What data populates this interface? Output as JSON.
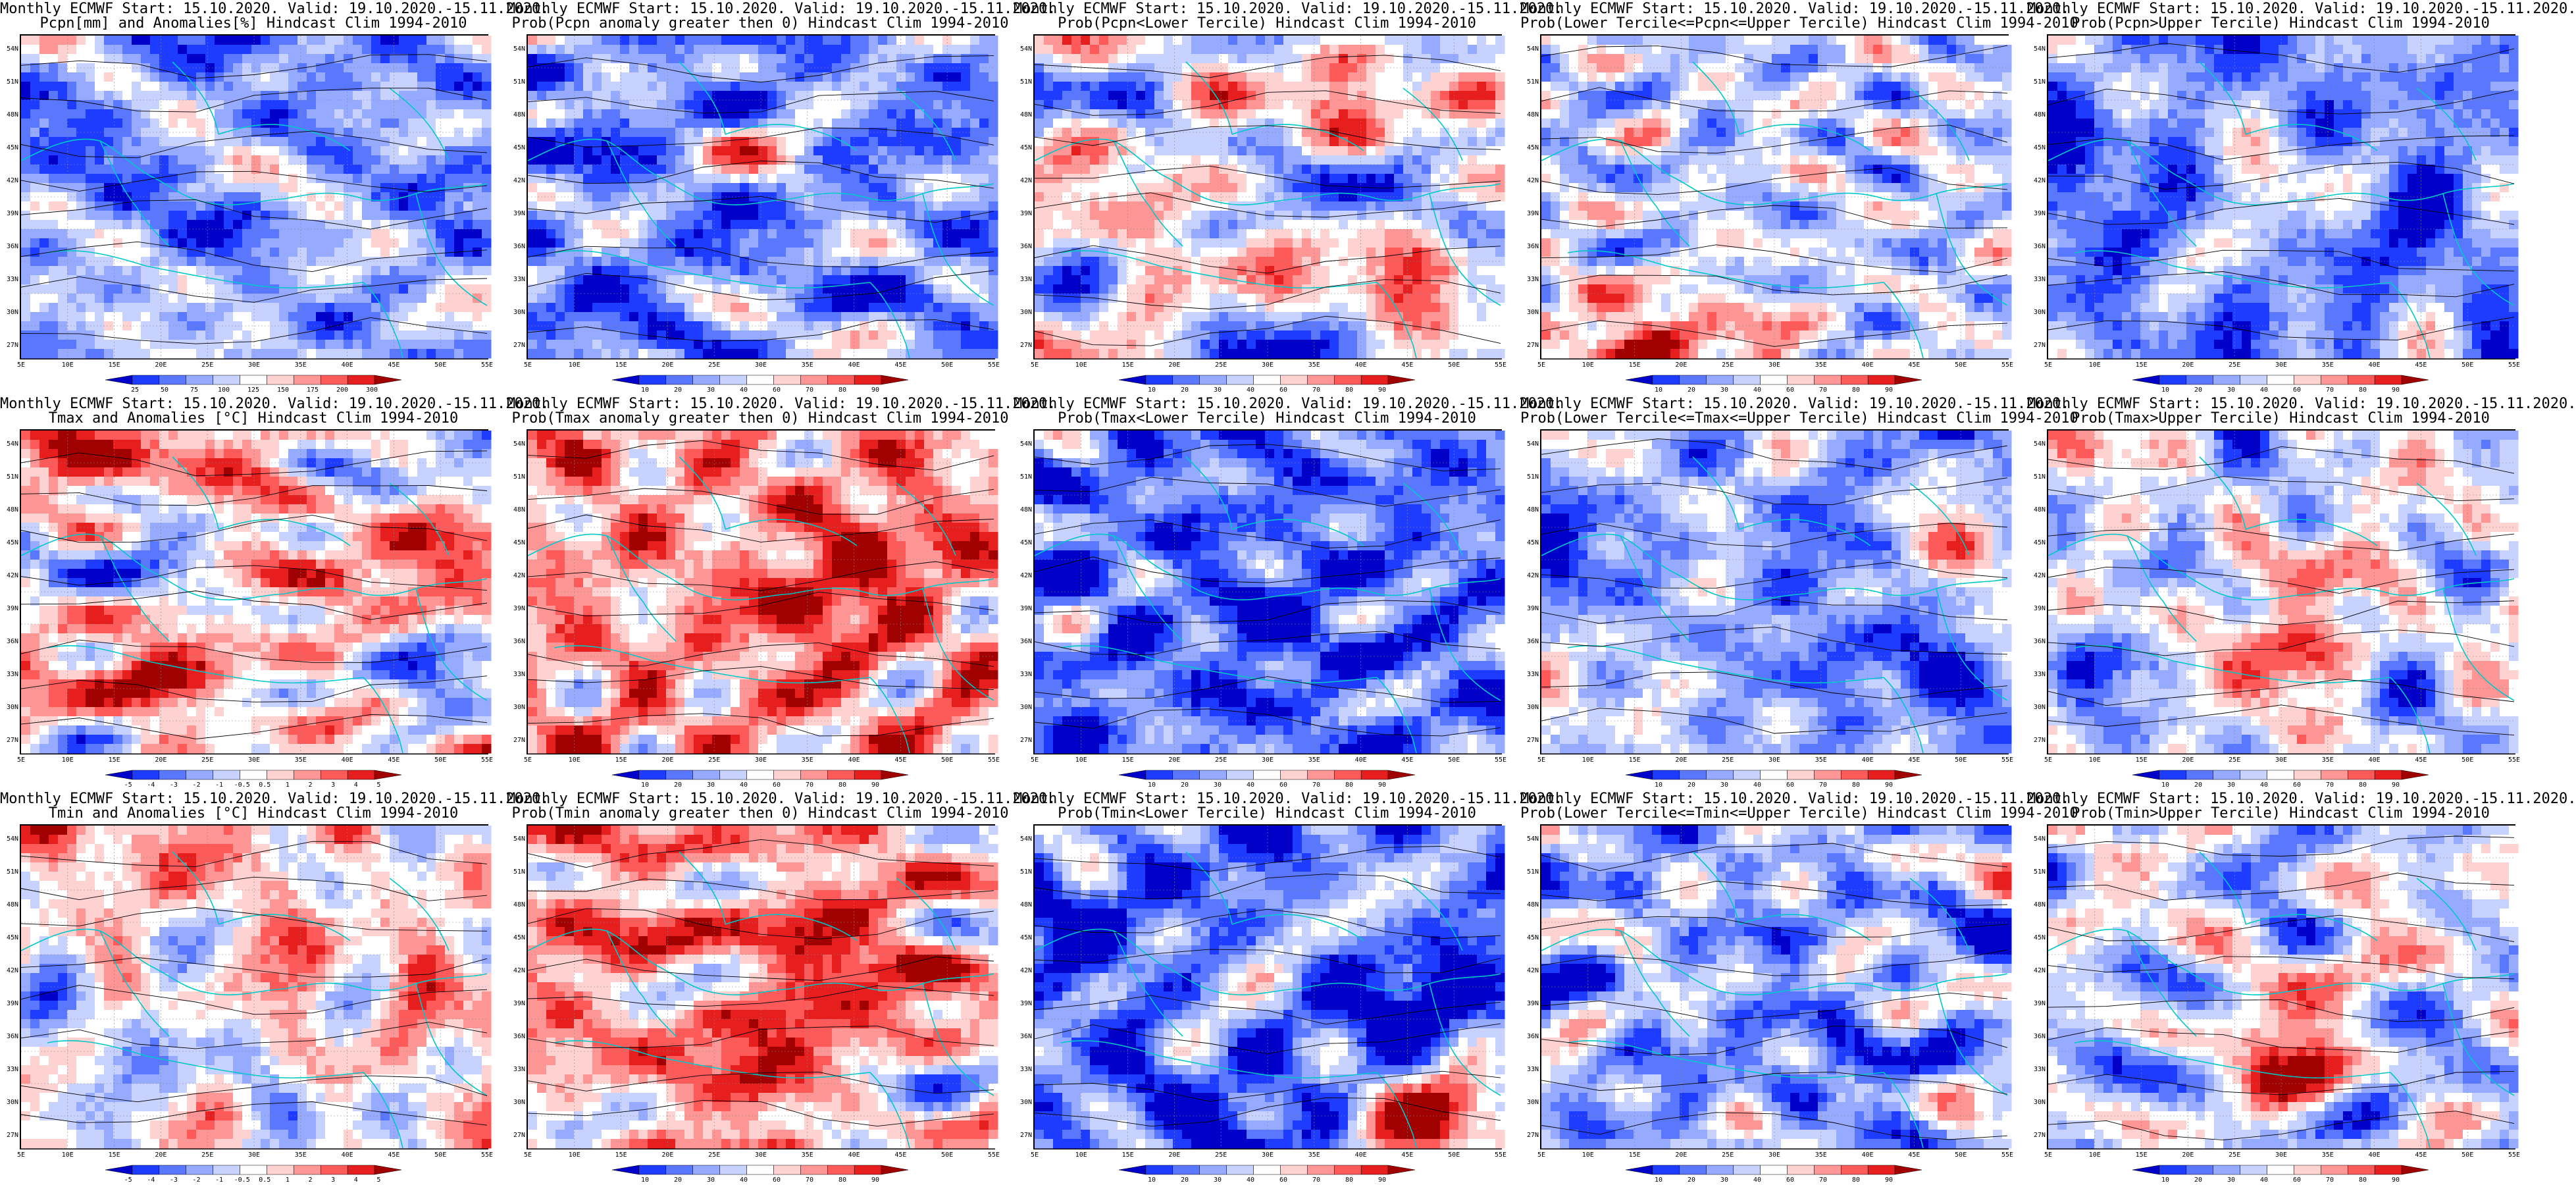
{
  "palettes": {
    "prob": [
      "#0000c8",
      "#1e3cff",
      "#5a78ff",
      "#96aaff",
      "#c8d2ff",
      "#ffffff",
      "#ffd2d2",
      "#ff9696",
      "#ff5a5a",
      "#e61e1e",
      "#a00000"
    ],
    "anom": [
      "#0000c8",
      "#1e3cff",
      "#5a78ff",
      "#96aaff",
      "#c8d2ff",
      "#ffffff",
      "#ffd2d2",
      "#ff9696",
      "#ff5a5a",
      "#e61e1e",
      "#a00000"
    ],
    "contour": "#000000",
    "coast": "#00c8c8"
  },
  "axes": {
    "lat_labels": [
      "54N",
      "51N",
      "48N",
      "45N",
      "42N",
      "39N",
      "36N",
      "33N",
      "30N",
      "27N"
    ],
    "lon_labels": [
      "5E",
      "10E",
      "15E",
      "20E",
      "25E",
      "30E",
      "35E",
      "40E",
      "45E",
      "50E",
      "55E"
    ]
  },
  "panels": [
    {
      "title1": "Monthly ECMWF Start: 15.10.2020. Valid: 19.10.2020.-15.11.2020.",
      "title2": "Pcpn[mm] and Anomalies[%] Hindcast Clim 1994-2010",
      "palette": "anom",
      "cbar_ticks": [
        "25",
        "50",
        "75",
        "100",
        "125",
        "150",
        "175",
        "200",
        "300"
      ],
      "seed": 11,
      "bias": -0.45,
      "zones": [
        [
          0.62,
          0.75,
          0.5
        ],
        [
          0.2,
          0.9,
          0.4
        ]
      ]
    },
    {
      "title1": "Monthly ECMWF Start: 15.10.2020. Valid: 19.10.2020.-15.11.2020.",
      "title2": "Prob(Pcpn anomaly greater then 0) Hindcast Clim 1994-2010",
      "palette": "prob",
      "cbar_ticks": [
        "10",
        "20",
        "30",
        "40",
        "60",
        "70",
        "80",
        "90"
      ],
      "seed": 23,
      "bias": -0.5,
      "zones": [
        [
          0.5,
          0.35,
          0.45
        ],
        [
          0.7,
          0.85,
          0.2
        ]
      ]
    },
    {
      "title1": "Monthly ECMWF Start: 15.10.2020. Valid: 19.10.2020.-15.11.2020.",
      "title2": "Prob(Pcpn<Lower Tercile) Hindcast Clim 1994-2010",
      "palette": "prob",
      "cbar_ticks": [
        "10",
        "20",
        "30",
        "40",
        "60",
        "70",
        "80",
        "90"
      ],
      "seed": 37,
      "bias": -0.05,
      "zones": [
        [
          0.3,
          0.7,
          0.35
        ],
        [
          0.8,
          0.85,
          0.35
        ],
        [
          0.5,
          0.97,
          -0.9
        ]
      ]
    },
    {
      "title1": "Monthly ECMWF Start: 15.10.2020. Valid: 19.10.2020.-15.11.2020.",
      "title2": "Prob(Lower Tercile<=Pcpn<=Upper Tercile) Hindcast Clim 1994-2010",
      "palette": "prob",
      "cbar_ticks": [
        "10",
        "20",
        "30",
        "40",
        "60",
        "70",
        "80",
        "90"
      ],
      "seed": 41,
      "bias": -0.2,
      "zones": [
        [
          0.15,
          0.92,
          0.9
        ],
        [
          0.4,
          0.95,
          0.7
        ]
      ]
    },
    {
      "title1": "Monthly ECMWF Start: 15.10.2020. Valid: 19.10.2020.-15.11.2020.",
      "title2": "Prob(Pcpn>Upper Tercile) Hindcast Clim 1994-2010",
      "palette": "prob",
      "cbar_ticks": [
        "10",
        "20",
        "30",
        "40",
        "60",
        "70",
        "80",
        "90"
      ],
      "seed": 53,
      "bias": -0.5,
      "zones": [
        [
          0.5,
          0.4,
          0.4
        ]
      ]
    },
    {
      "title1": "Monthly ECMWF Start: 15.10.2020. Valid: 19.10.2020.-15.11.2020.",
      "title2": "Tmax and Anomalies [°C] Hindcast Clim 1994-2010",
      "palette": "anom",
      "cbar_ticks": [
        "-5",
        "-4",
        "-3",
        "-2",
        "-1",
        "-0.5",
        "0.5",
        "1",
        "2",
        "3",
        "4",
        "5"
      ],
      "seed": 61,
      "bias": 0.12,
      "zones": [
        [
          0.55,
          0.45,
          0.3
        ]
      ]
    },
    {
      "title1": "Monthly ECMWF Start: 15.10.2020. Valid: 19.10.2020.-15.11.2020.",
      "title2": "Prob(Tmax anomaly greater then 0) Hindcast Clim 1994-2010",
      "palette": "prob",
      "cbar_ticks": [
        "10",
        "20",
        "30",
        "40",
        "60",
        "70",
        "80",
        "90"
      ],
      "seed": 71,
      "bias": 0.35,
      "zones": [
        [
          0.6,
          0.55,
          0.6
        ],
        [
          0.75,
          0.35,
          0.5
        ]
      ]
    },
    {
      "title1": "Monthly ECMWF Start: 15.10.2020. Valid: 19.10.2020.-15.11.2020.",
      "title2": "Prob(Tmax<Lower Tercile) Hindcast Clim 1994-2010",
      "palette": "prob",
      "cbar_ticks": [
        "10",
        "20",
        "30",
        "40",
        "60",
        "70",
        "80",
        "90"
      ],
      "seed": 83,
      "bias": -0.6,
      "zones": [
        [
          0.5,
          0.6,
          -0.4
        ]
      ]
    },
    {
      "title1": "Monthly ECMWF Start: 15.10.2020. Valid: 19.10.2020.-15.11.2020.",
      "title2": "Prob(Lower Tercile<=Tmax<=Upper Tercile) Hindcast Clim 1994-2010",
      "palette": "prob",
      "cbar_ticks": [
        "10",
        "20",
        "30",
        "40",
        "60",
        "70",
        "80",
        "90"
      ],
      "seed": 97,
      "bias": -0.35,
      "zones": [
        [
          0.6,
          0.7,
          -0.5
        ]
      ]
    },
    {
      "title1": "Monthly ECMWF Start: 15.10.2020. Valid: 19.10.2020.-15.11.2020.",
      "title2": "Prob(Tmax>Upper Tercile) Hindcast Clim 1994-2010",
      "palette": "prob",
      "cbar_ticks": [
        "10",
        "20",
        "30",
        "40",
        "60",
        "70",
        "80",
        "90"
      ],
      "seed": 101,
      "bias": -0.15,
      "zones": [
        [
          0.55,
          0.65,
          0.8
        ],
        [
          0.6,
          0.4,
          0.4
        ]
      ]
    },
    {
      "title1": "Monthly ECMWF Start: 15.10.2020. Valid: 19.10.2020.-15.11.2020.",
      "title2": "Tmin and Anomalies [°C] Hindcast Clim 1994-2010",
      "palette": "anom",
      "cbar_ticks": [
        "-5",
        "-4",
        "-3",
        "-2",
        "-1",
        "-0.5",
        "0.5",
        "1",
        "2",
        "3",
        "4",
        "5"
      ],
      "seed": 113,
      "bias": 0.12,
      "zones": [
        [
          0.55,
          0.45,
          0.35
        ],
        [
          0.75,
          0.85,
          -0.4
        ]
      ]
    },
    {
      "title1": "Monthly ECMWF Start: 15.10.2020. Valid: 19.10.2020.-15.11.2020.",
      "title2": "Prob(Tmin anomaly greater then 0) Hindcast Clim 1994-2010",
      "palette": "prob",
      "cbar_ticks": [
        "10",
        "20",
        "30",
        "40",
        "60",
        "70",
        "80",
        "90"
      ],
      "seed": 127,
      "bias": 0.3,
      "zones": [
        [
          0.5,
          0.6,
          0.7
        ],
        [
          0.6,
          0.35,
          0.5
        ],
        [
          0.9,
          0.8,
          -0.5
        ]
      ]
    },
    {
      "title1": "Monthly ECMWF Start: 15.10.2020. Valid: 19.10.2020.-15.11.2020.",
      "title2": "Prob(Tmin<Lower Tercile) Hindcast Clim 1994-2010",
      "palette": "prob",
      "cbar_ticks": [
        "10",
        "20",
        "30",
        "40",
        "60",
        "70",
        "80",
        "90"
      ],
      "seed": 131,
      "bias": -0.6,
      "zones": [
        [
          0.85,
          0.9,
          1.2
        ]
      ]
    },
    {
      "title1": "Monthly ECMWF Start: 15.10.2020. Valid: 19.10.2020.-15.11.2020.",
      "title2": "Prob(Lower Tercile<=Tmin<=Upper Tercile) Hindcast Clim 1994-2010",
      "palette": "prob",
      "cbar_ticks": [
        "10",
        "20",
        "30",
        "40",
        "60",
        "70",
        "80",
        "90"
      ],
      "seed": 139,
      "bias": -0.35,
      "zones": [
        [
          0.55,
          0.7,
          -0.4
        ]
      ]
    },
    {
      "title1": "Monthly ECMWF Start: 15.10.2020. Valid: 19.10.2020.-15.11.2020.",
      "title2": "Prob(Tmin>Upper Tercile) Hindcast Clim 1994-2010",
      "palette": "prob",
      "cbar_ticks": [
        "10",
        "20",
        "30",
        "40",
        "60",
        "70",
        "80",
        "90"
      ],
      "seed": 149,
      "bias": -0.2,
      "zones": [
        [
          0.5,
          0.7,
          0.9
        ],
        [
          0.6,
          0.4,
          0.4
        ]
      ]
    }
  ]
}
